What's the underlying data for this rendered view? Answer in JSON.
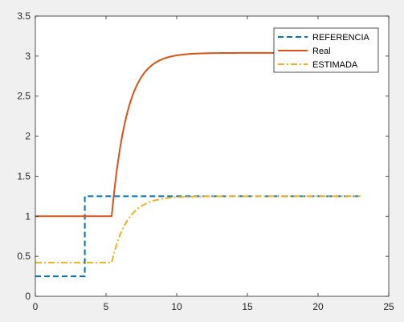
{
  "chart_data": {
    "type": "line",
    "title": "",
    "xlabel": "",
    "ylabel": "",
    "xlim": [
      0,
      25
    ],
    "ylim": [
      0,
      3.5
    ],
    "xticks": [
      0,
      5,
      10,
      15,
      20,
      25
    ],
    "yticks": [
      0,
      0.5,
      1,
      1.5,
      2,
      2.5,
      3,
      3.5
    ],
    "xtick_labels": [
      "0",
      "5",
      "10",
      "15",
      "20",
      "25"
    ],
    "ytick_labels": [
      "0",
      "0.5",
      "1",
      "1.5",
      "2",
      "2.5",
      "3",
      "3.5"
    ],
    "grid": false,
    "legend_position": "top-right",
    "series": [
      {
        "name": "REFERENCIA",
        "color": "#0072BD",
        "style": "dashed",
        "points": [
          [
            0,
            0.25
          ],
          [
            3.5,
            0.25
          ],
          [
            3.5,
            1.25
          ],
          [
            23,
            1.25
          ]
        ]
      },
      {
        "name": "Real",
        "color": "#D95319",
        "style": "solid",
        "step_at": 5.4,
        "initial": 1.0,
        "final": 3.04,
        "time_constant": 1.1,
        "x_end": 23
      },
      {
        "name": "ESTIMADA",
        "color": "#EDB120",
        "style": "dashdot",
        "step_at": 5.4,
        "initial": 0.42,
        "final": 1.25,
        "time_constant": 1.1,
        "x_end": 23
      }
    ]
  }
}
